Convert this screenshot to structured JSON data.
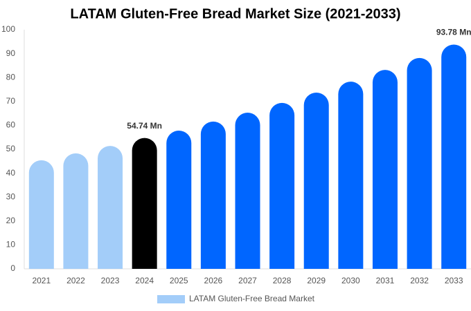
{
  "chart_data": {
    "type": "bar",
    "title": "LATAM Gluten-Free Bread Market Size (2021-2033)",
    "categories": [
      "2021",
      "2022",
      "2023",
      "2024",
      "2025",
      "2026",
      "2027",
      "2028",
      "2029",
      "2030",
      "2031",
      "2032",
      "2033"
    ],
    "series": [
      {
        "name": "LATAM Gluten-Free Bread Market",
        "color": "#a3cdf9",
        "bar_colors": [
          "#a3cdf9",
          "#a3cdf9",
          "#a3cdf9",
          "#000000",
          "#0066ff",
          "#0066ff",
          "#0066ff",
          "#0066ff",
          "#0066ff",
          "#0066ff",
          "#0066ff",
          "#0066ff",
          "#0066ff"
        ],
        "values": [
          45.4,
          48.3,
          51.4,
          54.74,
          57.8,
          61.6,
          65.3,
          69.4,
          73.7,
          78.3,
          83.2,
          88.2,
          93.78
        ],
        "value_labels": [
          null,
          null,
          null,
          "54.74 Mn",
          null,
          null,
          null,
          null,
          null,
          null,
          null,
          null,
          "93.78 Mn"
        ]
      }
    ],
    "ylim": [
      0,
      100
    ],
    "yticks": [
      0,
      10,
      20,
      30,
      40,
      50,
      60,
      70,
      80,
      90,
      100
    ],
    "grid": false,
    "legend": "bottom"
  }
}
